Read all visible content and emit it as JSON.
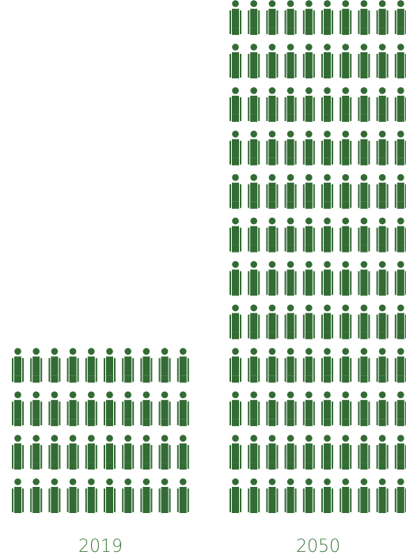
{
  "chart_data": {
    "type": "pictogram",
    "categories": [
      "2019",
      "2050"
    ],
    "series": [
      {
        "values": [
          40,
          120
        ]
      }
    ],
    "columns_per_row": [
      10,
      10
    ],
    "icon": "person-icon",
    "color": "#336b34",
    "label_color": "#3f7a3f"
  }
}
